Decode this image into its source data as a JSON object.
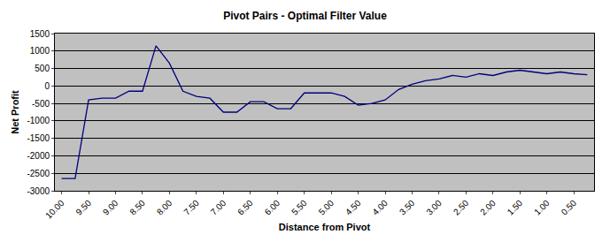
{
  "chart_data": {
    "type": "line",
    "title": "Pivot Pairs - Optimal Filter Value",
    "x_label": "Distance from Pivot",
    "y_label": "Net Profit",
    "categories": [
      "10.00",
      null,
      "9.50",
      null,
      "9.00",
      null,
      "8.50",
      null,
      "8.00",
      null,
      "7.50",
      null,
      "7.00",
      null,
      "6.50",
      null,
      "6.00",
      null,
      "5.50",
      null,
      "5.00",
      null,
      "4.50",
      null,
      "4.00",
      null,
      "3.50",
      null,
      "3.00",
      null,
      "2.50",
      null,
      "2.00",
      null,
      "1.50",
      null,
      "1.00",
      null,
      "0.50",
      null
    ],
    "values": [
      -2650,
      -2650,
      -400,
      -350,
      -350,
      -150,
      -150,
      1150,
      650,
      -150,
      -300,
      -350,
      -750,
      -750,
      -450,
      -450,
      -650,
      -650,
      -200,
      -200,
      -200,
      -300,
      -550,
      -500,
      -400,
      -100,
      50,
      150,
      200,
      300,
      250,
      350,
      300,
      400,
      450,
      400,
      350,
      400,
      350,
      320
    ],
    "color": "#000080",
    "ylim": [
      -3000,
      1500
    ],
    "yticks": [
      -3000,
      -2500,
      -2000,
      -1500,
      -1000,
      -500,
      0,
      500,
      1000,
      1500
    ],
    "grid": true
  }
}
